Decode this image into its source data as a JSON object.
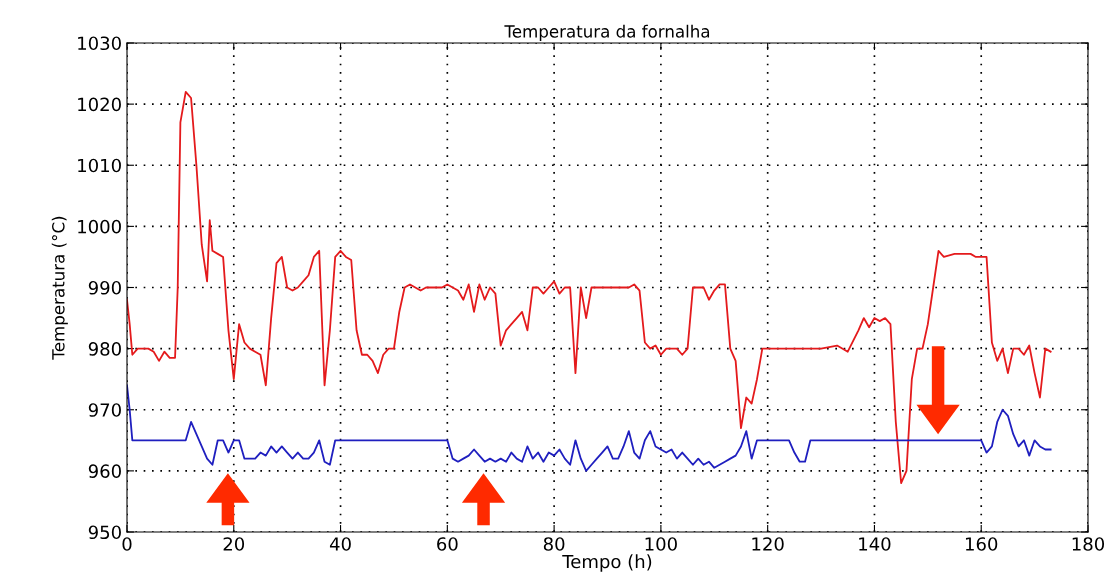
{
  "chart_data": {
    "type": "line",
    "title": "Temperatura da fornalha",
    "xlabel": "Tempo (h)",
    "ylabel": "Temperatura (°C)",
    "xlim": [
      0,
      180
    ],
    "xticks": [
      0,
      20,
      40,
      60,
      80,
      100,
      120,
      140,
      160,
      180
    ],
    "ylim": [
      950,
      1030
    ],
    "yticks": [
      950,
      960,
      970,
      980,
      990,
      1000,
      1010,
      1020,
      1030
    ],
    "grid": true,
    "line_style": "solid",
    "marker": "none",
    "series": [
      {
        "color": "#e41a1c",
        "x": [
          0,
          0.5,
          1,
          2,
          3,
          4,
          5,
          6,
          7,
          8,
          9,
          9.5,
          10,
          11,
          12,
          13,
          14,
          15,
          15.5,
          16,
          17,
          18,
          19,
          20,
          21,
          22,
          23,
          24,
          25,
          26,
          27,
          28,
          29,
          30,
          31,
          32,
          33,
          34,
          35,
          36,
          37,
          38,
          39,
          40,
          41,
          42,
          43,
          44,
          45,
          46,
          47,
          48,
          49,
          50,
          51,
          52,
          53,
          54,
          55,
          56,
          57,
          58,
          59,
          60,
          61,
          62,
          63,
          64,
          65,
          66,
          67,
          68,
          69,
          70,
          71,
          72,
          73,
          74,
          75,
          76,
          77,
          78,
          79,
          80,
          81,
          82,
          83,
          84,
          85,
          86,
          87,
          88,
          90,
          92,
          94,
          95,
          96,
          97,
          98,
          99,
          100,
          101,
          102,
          103,
          104,
          105,
          106,
          107,
          108,
          109,
          110,
          111,
          112,
          113,
          114,
          115,
          116,
          117,
          118,
          119,
          120,
          125,
          130,
          133,
          135,
          137,
          138,
          139,
          140,
          141,
          142,
          143,
          144,
          145,
          146,
          147,
          148,
          149,
          150,
          151,
          152,
          153,
          155,
          158,
          159,
          160,
          161,
          162,
          163,
          164,
          165,
          166,
          167,
          168,
          169,
          170,
          171,
          172,
          173
        ],
        "values": [
          988,
          984,
          979,
          980,
          980,
          980,
          979.5,
          978,
          979.5,
          978.5,
          978.5,
          990,
          1017,
          1022,
          1021,
          1010,
          997,
          991,
          1001,
          996,
          995.5,
          995,
          983,
          975,
          984,
          981,
          980,
          979.5,
          979,
          974,
          985,
          994,
          995,
          990,
          989.5,
          990,
          991,
          992,
          995,
          996,
          974,
          983,
          995,
          996,
          995,
          994.5,
          983,
          979,
          979,
          978,
          976,
          979,
          980,
          980,
          986,
          990,
          990.5,
          990,
          989.5,
          990,
          990,
          990,
          990,
          990.5,
          990,
          989.5,
          988,
          990.5,
          986,
          990.5,
          988,
          990,
          989,
          980.5,
          983,
          984,
          985,
          986,
          983,
          990,
          990,
          989,
          990,
          991,
          989,
          990,
          990,
          976,
          990,
          985,
          990,
          990,
          990,
          990,
          990,
          990.5,
          989.5,
          981,
          980,
          980.5,
          979,
          980,
          980,
          980,
          979,
          980,
          990,
          990,
          990,
          988,
          989.5,
          990.5,
          990.5,
          980,
          978,
          967,
          972,
          971,
          975,
          980,
          980,
          980,
          980,
          980.5,
          979.5,
          983,
          985,
          983.5,
          985,
          984.5,
          985,
          984,
          968,
          958,
          960,
          975,
          980,
          980,
          984,
          990,
          996,
          995,
          995.5,
          995.5,
          995,
          995,
          995,
          981,
          978,
          980,
          976,
          980,
          980,
          979,
          980.5,
          976,
          972,
          980,
          979.5
        ]
      },
      {
        "color": "#1f1fbf",
        "x": [
          0,
          0.5,
          1,
          2,
          11,
          12,
          13,
          14,
          15,
          16,
          17,
          18,
          19,
          20,
          21,
          22,
          23,
          24,
          25,
          26,
          27,
          28,
          29,
          30,
          31,
          32,
          33,
          34,
          35,
          36,
          37,
          38,
          39,
          40,
          60,
          61,
          62,
          63,
          64,
          65,
          66,
          67,
          68,
          69,
          70,
          71,
          72,
          73,
          74,
          75,
          76,
          77,
          78,
          79,
          80,
          81,
          82,
          83,
          84,
          85,
          86,
          87,
          88,
          89,
          90,
          91,
          92,
          93,
          94,
          95,
          96,
          97,
          98,
          99,
          100,
          101,
          102,
          103,
          104,
          105,
          106,
          107,
          108,
          109,
          110,
          111,
          112,
          113,
          114,
          115,
          116,
          117,
          118,
          119,
          124,
          125,
          126,
          127,
          128,
          160,
          161,
          162,
          163,
          164,
          165,
          166,
          167,
          168,
          169,
          170,
          171,
          172,
          173
        ],
        "values": [
          974,
          970,
          965,
          965,
          965,
          968,
          966,
          964,
          962,
          961,
          965,
          965,
          963,
          965,
          965,
          962,
          962,
          962,
          963,
          962.5,
          964,
          963,
          964,
          963,
          962,
          963,
          962,
          962,
          963,
          965,
          961.5,
          961,
          965,
          965,
          965,
          962,
          961.5,
          962,
          962.5,
          963.5,
          962.5,
          961.5,
          962,
          961.5,
          962,
          961.5,
          963,
          962,
          961.5,
          964,
          962,
          963,
          961.5,
          963,
          962.5,
          963.5,
          962,
          961,
          965,
          962,
          960,
          961,
          962,
          963,
          964,
          962,
          962,
          964,
          966.5,
          963,
          962,
          965,
          966.5,
          964,
          963.5,
          963,
          963.5,
          962,
          963,
          962,
          961,
          962,
          961,
          961.5,
          960.5,
          961,
          961.5,
          962,
          962.5,
          964,
          966.5,
          962,
          965,
          965,
          965,
          963,
          961.5,
          961.5,
          965,
          965,
          963,
          964,
          968,
          970,
          969,
          966,
          964,
          965,
          962.5,
          965,
          964,
          963.5,
          963.5
        ]
      }
    ]
  }
}
